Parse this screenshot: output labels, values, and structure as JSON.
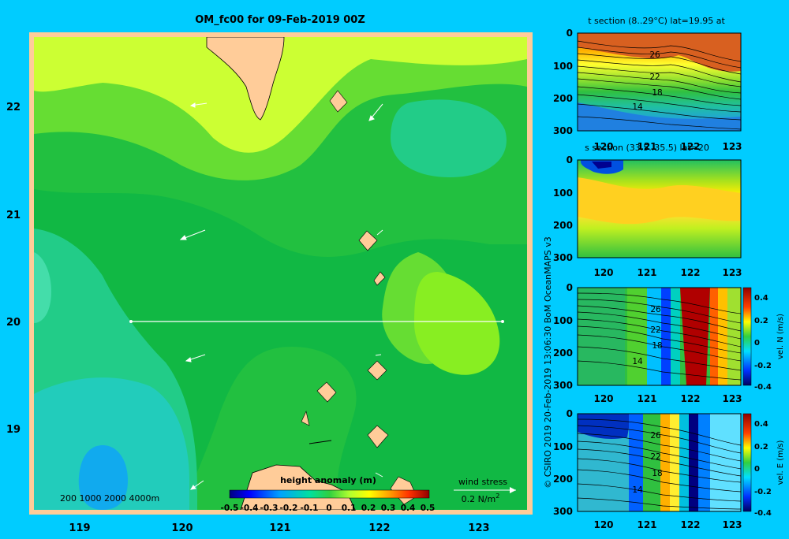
{
  "colors": {
    "background": "#00ccff",
    "land": "#ffcc99"
  },
  "map": {
    "title": "OM_fc00 for 09-Feb-2019 00Z",
    "lon_ticks": [
      "119",
      "120",
      "121",
      "122",
      "123"
    ],
    "lat_ticks": [
      "22",
      "21",
      "20",
      "19"
    ],
    "depth_legend": "200  1000  2000  4000m",
    "wind_label": "wind stress",
    "wind_scale": "0.2 N/m",
    "wind_scale_sup": "2"
  },
  "colorbar": {
    "title": "height anomaly (m)",
    "ticks": [
      "-0.5",
      "-0.4",
      "-0.3",
      "-0.2",
      "-0.1",
      "0",
      "0.1",
      "0.2",
      "0.3",
      "0.4",
      "0.5"
    ]
  },
  "sections": [
    {
      "title": "t section (8..29°C) lat=19.95 at",
      "contour_labels": [
        "26",
        "22",
        "18",
        "14"
      ],
      "cbar_label": ""
    },
    {
      "title": "s section (33.5..35.5) lat=20",
      "contour_labels": [],
      "cbar_label": ""
    },
    {
      "title": "",
      "contour_labels": [
        "26",
        "22",
        "18",
        "14"
      ],
      "cbar_label": "vel. N (m/s)",
      "cbar_ticks": [
        "0.4",
        "0.2",
        "0",
        "-0.2",
        "-0.4"
      ]
    },
    {
      "title": "",
      "contour_labels": [
        "26",
        "22",
        "18",
        "14"
      ],
      "cbar_label": "vel. E (m/s)",
      "cbar_ticks": [
        "0.4",
        "0.2",
        "0",
        "-0.2",
        "-0.4"
      ]
    }
  ],
  "section_x_ticks": [
    "120",
    "121",
    "122",
    "123"
  ],
  "section_y_ticks": [
    "0",
    "100",
    "200",
    "300"
  ],
  "side_credit": "© CSIRO 2019   20-Feb-2019 13:06:30 BoM OceanMAPS v3",
  "chart_data": {
    "type": "heatmap",
    "title": "OM_fc00 for 09-Feb-2019 00Z",
    "x_range": [
      118.5,
      123.5
    ],
    "y_range": [
      18.3,
      22.7
    ],
    "colorbar_range": [
      -0.5,
      0.5
    ],
    "section_line": {
      "lat": 20,
      "lon_start": 119.5,
      "lon_end": 123.2
    },
    "sections_x_range": [
      119.5,
      123.2
    ],
    "sections_depth_range": [
      0,
      300
    ]
  }
}
